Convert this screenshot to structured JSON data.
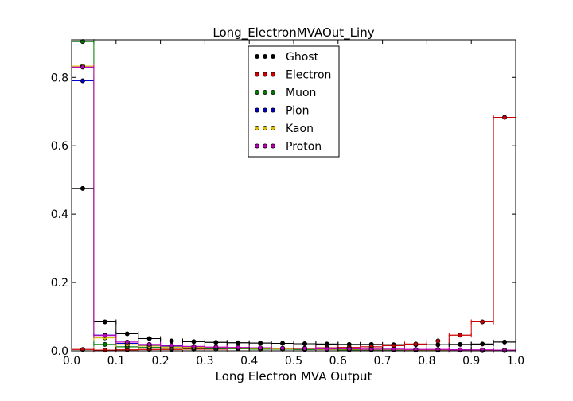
{
  "chart_data": {
    "type": "scatter",
    "title": "Long_ElectronMVAOut_Liny",
    "xlabel": "Long Electron MVA Output",
    "ylabel": "",
    "xlim": [
      0.0,
      1.0
    ],
    "ylim": [
      0.0,
      0.91
    ],
    "xticks": [
      "0.0",
      "0.1",
      "0.2",
      "0.3",
      "0.4",
      "0.5",
      "0.6",
      "0.7",
      "0.8",
      "0.9",
      "1.0"
    ],
    "yticks": [
      "0.0",
      "0.2",
      "0.4",
      "0.6",
      "0.8"
    ],
    "legend_position": "top-center",
    "grid": false,
    "x": [
      0.025,
      0.075,
      0.125,
      0.175,
      0.225,
      0.275,
      0.325,
      0.375,
      0.425,
      0.475,
      0.525,
      0.575,
      0.625,
      0.675,
      0.725,
      0.775,
      0.825,
      0.875,
      0.925,
      0.975
    ],
    "series": [
      {
        "name": "Ghost",
        "color": "#000000",
        "values": [
          0.475,
          0.085,
          0.05,
          0.036,
          0.029,
          0.027,
          0.025,
          0.024,
          0.023,
          0.022,
          0.021,
          0.02,
          0.019,
          0.019,
          0.018,
          0.018,
          0.018,
          0.019,
          0.02,
          0.026
        ]
      },
      {
        "name": "Electron",
        "color": "#cc0000",
        "values": [
          0.004,
          0.002,
          0.003,
          0.004,
          0.004,
          0.005,
          0.005,
          0.006,
          0.006,
          0.007,
          0.008,
          0.009,
          0.01,
          0.012,
          0.015,
          0.02,
          0.029,
          0.046,
          0.085,
          0.683
        ]
      },
      {
        "name": "Muon",
        "color": "#007700",
        "values": [
          0.905,
          0.019,
          0.012,
          0.01,
          0.008,
          0.007,
          0.006,
          0.006,
          0.005,
          0.005,
          0.004,
          0.004,
          0.003,
          0.003,
          0.003,
          0.002,
          0.002,
          0.002,
          0.001,
          0.001
        ]
      },
      {
        "name": "Pion",
        "color": "#0000cc",
        "values": [
          0.79,
          0.046,
          0.022,
          0.017,
          0.014,
          0.012,
          0.01,
          0.009,
          0.008,
          0.007,
          0.006,
          0.006,
          0.005,
          0.004,
          0.004,
          0.003,
          0.003,
          0.003,
          0.002,
          0.002
        ]
      },
      {
        "name": "Kaon",
        "color": "#ddbb00",
        "values": [
          0.833,
          0.038,
          0.018,
          0.014,
          0.011,
          0.01,
          0.009,
          0.008,
          0.007,
          0.006,
          0.006,
          0.005,
          0.005,
          0.004,
          0.004,
          0.003,
          0.003,
          0.002,
          0.002,
          0.002
        ]
      },
      {
        "name": "Proton",
        "color": "#bb00bb",
        "values": [
          0.83,
          0.045,
          0.026,
          0.019,
          0.016,
          0.013,
          0.011,
          0.01,
          0.009,
          0.008,
          0.007,
          0.006,
          0.006,
          0.005,
          0.005,
          0.004,
          0.004,
          0.003,
          0.003,
          0.002
        ]
      }
    ]
  }
}
